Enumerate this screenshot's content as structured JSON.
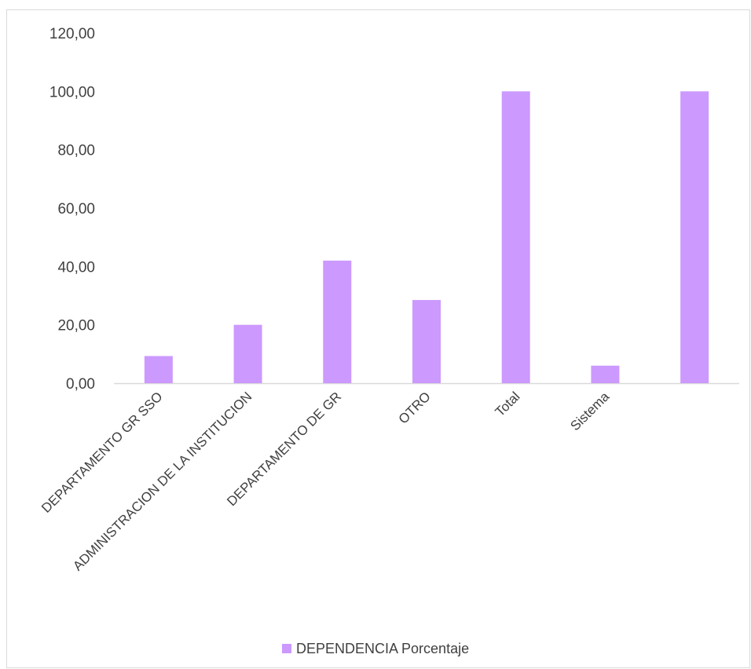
{
  "chart_data": {
    "type": "bar",
    "categories": [
      "DEPARTAMENTO GR SSO",
      "ADMINISTRACION DE LA INSTITUCION",
      "DEPARTAMENTO DE GR",
      "OTRO",
      "Total",
      "Sistema",
      ""
    ],
    "series": [
      {
        "name": "DEPENDENCIA Porcentaje",
        "values": [
          9.3,
          20.0,
          42.0,
          28.5,
          100.0,
          6.0,
          100.0
        ],
        "color": "#cc99ff"
      }
    ],
    "y_ticks": [
      "0,00",
      "20,00",
      "40,00",
      "60,00",
      "80,00",
      "100,00",
      "120,00"
    ],
    "ylim": [
      0,
      120
    ],
    "grid": false,
    "legend": {
      "position": "bottom",
      "label": "DEPENDENCIA Porcentaje"
    },
    "colors": {
      "bar": "#cc99ff",
      "axis": "#d9d9d9",
      "text": "#404040"
    }
  }
}
